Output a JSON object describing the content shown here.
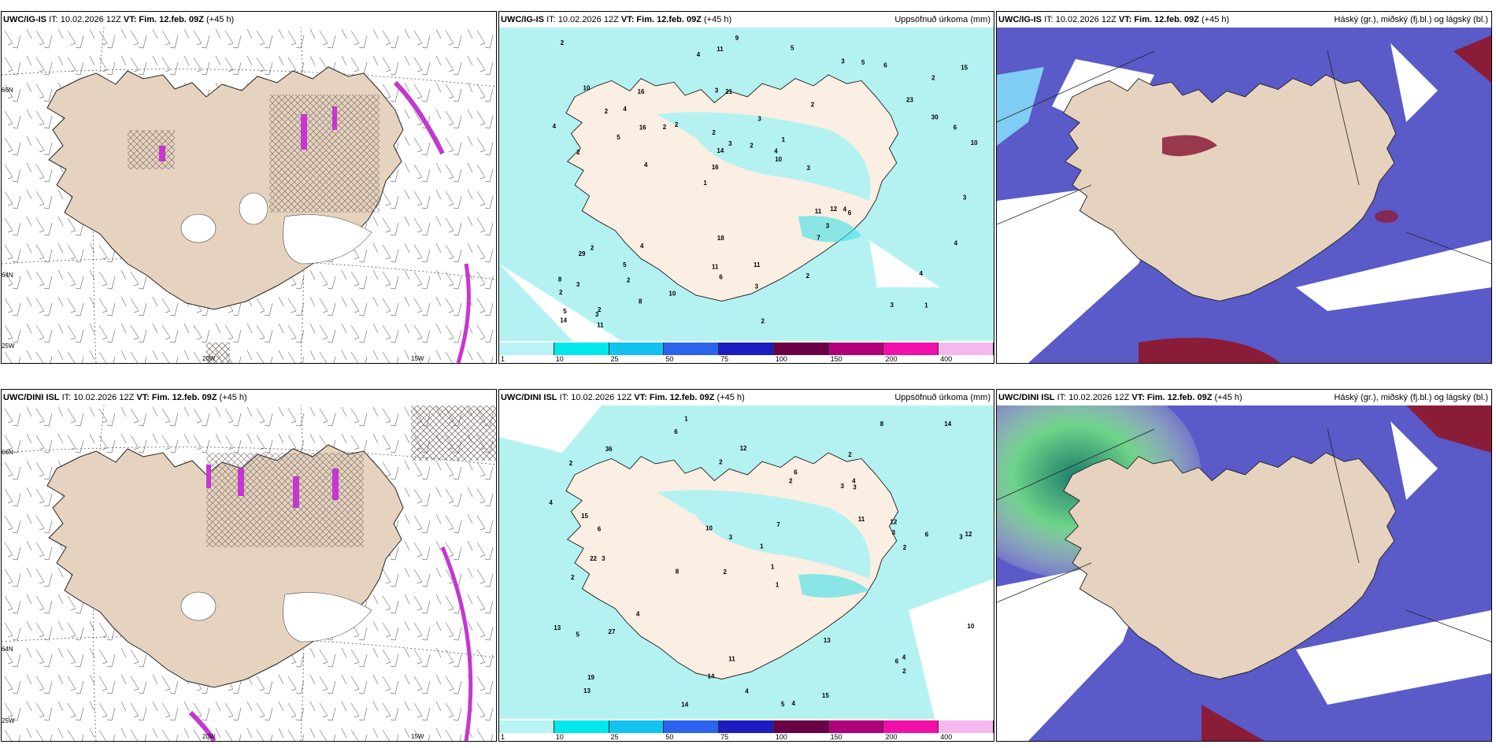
{
  "panels": {
    "p1": {
      "model": "UWC/IG-IS",
      "it": "IT: 10.02.2026 12Z",
      "vt_label": "VT:",
      "vt": "Fim. 12.feb. 09Z",
      "lead": "(+45 h)",
      "right_title": ""
    },
    "p2": {
      "model": "UWC/IG-IS",
      "it": "IT: 10.02.2026 12Z",
      "vt_label": "VT:",
      "vt": "Fim. 12.feb. 09Z",
      "lead": "(+45 h)",
      "right_title": "Uppsöfnuð úrkoma (mm)"
    },
    "p3": {
      "model": "UWC/IG-IS",
      "it": "IT: 10.02.2026 12Z",
      "vt_label": "VT:",
      "vt": "Fim. 12.feb. 09Z",
      "lead": "(+45 h)",
      "right_title": "Háský (gr.), miðský (fj.bl.) og lágský (bl.)"
    },
    "p4": {
      "model": "UWC/DINI ISL",
      "it": "IT: 10.02.2026 12Z",
      "vt_label": "VT:",
      "vt": "Fim. 12.feb. 09Z",
      "lead": "(+45 h)",
      "right_title": ""
    },
    "p5": {
      "model": "UWC/DINI ISL",
      "it": "IT: 10.02.2026 12Z",
      "vt_label": "VT:",
      "vt": "Fim. 12.feb. 09Z",
      "lead": "(+45 h)",
      "right_title": "Uppsöfnuð úrkoma (mm)"
    },
    "p6": {
      "model": "UWC/DINI ISL",
      "it": "IT: 10.02.2026 12Z",
      "vt_label": "VT:",
      "vt": "Fim. 12.feb. 09Z",
      "lead": "(+45 h)",
      "right_title": "Háský (gr.), miðský (fj.bl.) og lágský (bl.)"
    }
  },
  "grid_labels": {
    "lat66": "66N",
    "lat64": "64N",
    "lon25": "25W",
    "lon20": "20W",
    "lon15": "15W"
  },
  "colorbar": {
    "ticks": [
      "1",
      "10",
      "25",
      "50",
      "75",
      "100",
      "150",
      "200",
      "400"
    ],
    "colors": [
      "#b8f4f4",
      "#00e8ea",
      "#12c3f0",
      "#2b63ec",
      "#1c1cc0",
      "#6a0046",
      "#b0007a",
      "#f00fa8",
      "#f5b8ee"
    ]
  },
  "precip_labels_top": [
    "1",
    "2",
    "2",
    "1",
    "2",
    "2",
    "3",
    "3",
    "2",
    "2",
    "2",
    "2",
    "21",
    "1",
    "6",
    "10",
    "11",
    "10",
    "11",
    "30",
    "16",
    "11",
    "14",
    "16",
    "3",
    "4",
    "3",
    "4",
    "4",
    "2",
    "2",
    "5",
    "7",
    "8",
    "6",
    "4",
    "5",
    "6",
    "10",
    "29",
    "23",
    "15",
    "3",
    "2",
    "5",
    "11",
    "14",
    "11",
    "6",
    "9",
    "4",
    "4",
    "4",
    "5",
    "3",
    "5",
    "4",
    "3",
    "4",
    "18",
    "10",
    "12",
    "16",
    "8",
    "2",
    "2",
    "3",
    "2",
    "3",
    "2",
    "3",
    "3"
  ],
  "precip_labels_bottom": [
    "1",
    "2",
    "3",
    "2",
    "1",
    "3",
    "2",
    "3",
    "2",
    "2",
    "1",
    "13",
    "6",
    "8",
    "5",
    "4",
    "11",
    "8",
    "11",
    "4",
    "6",
    "22",
    "12",
    "6",
    "13",
    "15",
    "3",
    "3",
    "4",
    "5",
    "6",
    "6",
    "27",
    "10",
    "13",
    "10",
    "12",
    "14",
    "14",
    "12",
    "19",
    "14",
    "15",
    "36",
    "4",
    "3",
    "2",
    "4",
    "4",
    "1",
    "2",
    "2",
    "7"
  ],
  "palette": {
    "land": "#e6d3bf",
    "precip_light": "#b4f2f2",
    "hatch": "#6c5e5a",
    "cloud_mid": "#5a5ac8",
    "cloud_low": "#7fcdf5",
    "cloud_high": "#8b1c38",
    "magenta": "#c437d1",
    "green": "#3fae7e"
  }
}
